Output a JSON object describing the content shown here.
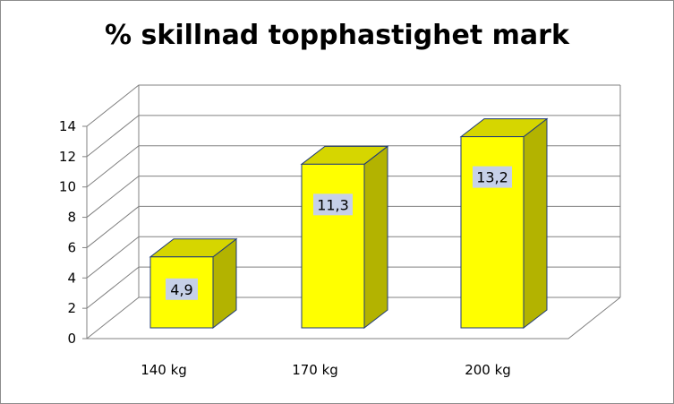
{
  "chart_data": {
    "type": "bar",
    "title": "% skillnad topphastighet mark",
    "categories": [
      "140 kg",
      "170 kg",
      "200 kg"
    ],
    "values": [
      4.9,
      11.3,
      13.2
    ],
    "value_labels": [
      "4,9",
      "11,3",
      "13,2"
    ],
    "y_ticks": [
      "0",
      "2",
      "4",
      "6",
      "8",
      "10",
      "12",
      "14"
    ],
    "ylim": [
      0,
      14
    ],
    "grid": true,
    "legend": "none",
    "style": "3d-column",
    "colors": {
      "bar_front": "#ffff00",
      "bar_side": "#b3b300",
      "bar_top": "#d6d600",
      "label_box": "#c6d0e8",
      "grid": "#808080"
    }
  }
}
